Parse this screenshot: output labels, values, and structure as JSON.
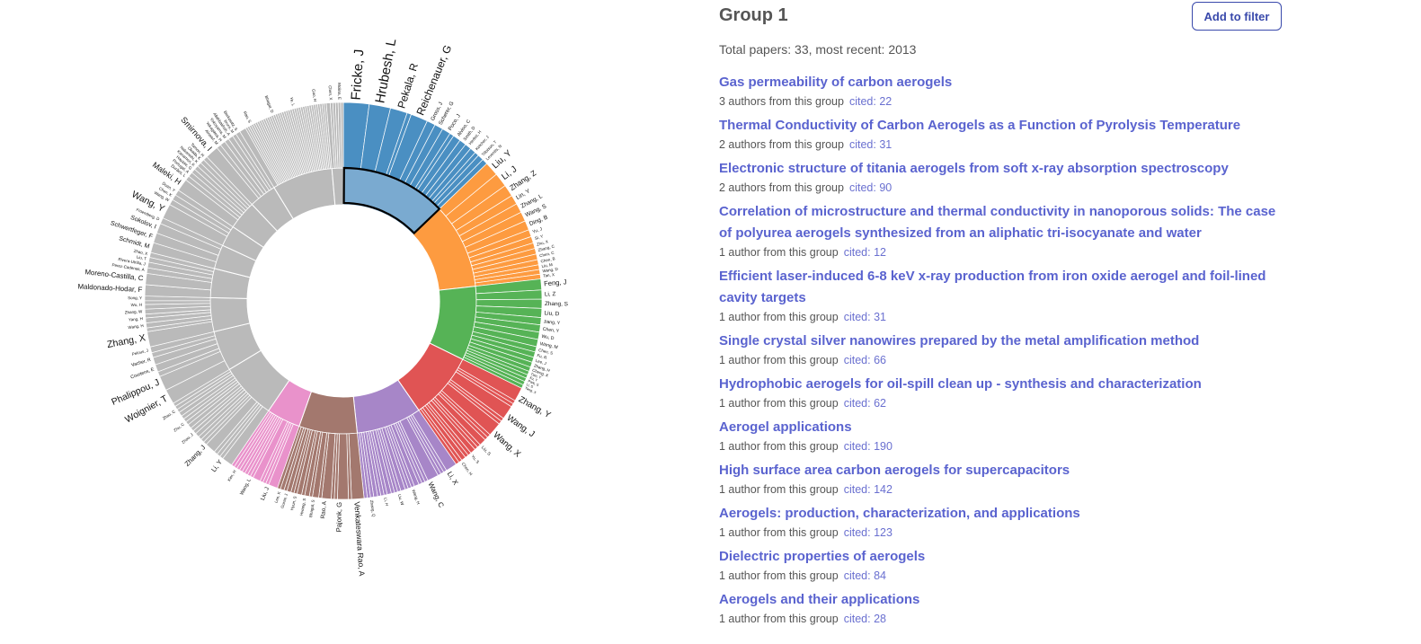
{
  "chart_data": {
    "type": "sunburst",
    "highlighted_group": "Group 1",
    "groups": [
      {
        "name": "Group 1",
        "share": 13.1,
        "color": "#4a8fc2",
        "highlight_color": "#7aaad0",
        "authors": [
          {
            "name": "Fricke, J",
            "weight": 6
          },
          {
            "name": "Hrubesh, L",
            "weight": 5
          },
          {
            "name": "Pekala, R",
            "weight": 4
          },
          {
            "name": "Reichenauer, G",
            "weight": 4
          },
          {
            "name": "Gross, J",
            "weight": 2
          },
          {
            "name": "Scherer, G",
            "weight": 2
          },
          {
            "name": "Poco, J",
            "weight": 2
          },
          {
            "name": "Alviso, C",
            "weight": 1.8
          },
          {
            "name": "Smith, D",
            "weight": 1.6
          },
          {
            "name": "Herbst, H",
            "weight": 1.5
          },
          {
            "name": "Ketcher, J",
            "weight": 1.4
          },
          {
            "name": "Tillotson, T",
            "weight": 1.4
          },
          {
            "name": "Leventis, N",
            "weight": 1.3
          }
        ],
        "unlabeled": 3
      },
      {
        "name": "",
        "share": 10.6,
        "color": "#fd9b40",
        "authors": [
          {
            "name": "Liu, Y",
            "weight": 3
          },
          {
            "name": "Li, J",
            "weight": 3
          },
          {
            "name": "Zhang, Z",
            "weight": 2.5
          },
          {
            "name": "Lin, Y",
            "weight": 2
          },
          {
            "name": "Zhang, L",
            "weight": 2
          },
          {
            "name": "Wang, S",
            "weight": 2
          },
          {
            "name": "Ding, B",
            "weight": 2
          },
          {
            "name": "Yu, J",
            "weight": 1.5
          },
          {
            "name": "Si, Y",
            "weight": 1.4
          },
          {
            "name": "Zhu, X",
            "weight": 1.2
          },
          {
            "name": "Zhang, C",
            "weight": 1.2
          },
          {
            "name": "Chen, C",
            "weight": 1.2
          },
          {
            "name": "Chen, B",
            "weight": 1.1
          },
          {
            "name": "Liu, M",
            "weight": 1
          },
          {
            "name": "Wang, D",
            "weight": 1
          },
          {
            "name": "Tan, X",
            "weight": 1
          }
        ],
        "unlabeled": 0
      },
      {
        "name": "",
        "share": 9.2,
        "color": "#56b356",
        "authors": [
          {
            "name": "Feng, J",
            "weight": 3
          },
          {
            "name": "Li, Z",
            "weight": 2.5
          },
          {
            "name": "Zhang, S",
            "weight": 2.5
          },
          {
            "name": "Liu, D",
            "weight": 2.5
          },
          {
            "name": "Jiang, Y",
            "weight": 2
          },
          {
            "name": "Chen, Y",
            "weight": 2
          },
          {
            "name": "Wu, D",
            "weight": 2
          },
          {
            "name": "Wang, M",
            "weight": 2
          },
          {
            "name": "Chen, S",
            "weight": 1.5
          },
          {
            "name": "Fu, R",
            "weight": 1.5
          },
          {
            "name": "Lee, J",
            "weight": 1.4
          },
          {
            "name": "Zhang, H",
            "weight": 1.4
          },
          {
            "name": "Cheng, X",
            "weight": 1.2
          },
          {
            "name": "Tian, Y",
            "weight": 1
          },
          {
            "name": "Xu, Y",
            "weight": 1
          },
          {
            "name": "Park, S",
            "weight": 1
          },
          {
            "name": "Li, S",
            "weight": 1
          },
          {
            "name": "Yang, X",
            "weight": 1
          }
        ],
        "unlabeled": 0
      },
      {
        "name": "",
        "share": 8.3,
        "color": "#e05454",
        "authors": [
          {
            "name": "Zhang, Y",
            "weight": 4
          },
          {
            "name": "Wang, J",
            "weight": 4
          },
          {
            "name": "Wang, X",
            "weight": 4
          },
          {
            "name": "Liu, S",
            "weight": 2
          },
          {
            "name": "Yu, S",
            "weight": 1.5
          },
          {
            "name": "Chen, H",
            "weight": 1.3
          }
        ],
        "unlabeled": 12
      },
      {
        "name": "",
        "share": 8.1,
        "color": "#a786c8",
        "authors": [
          {
            "name": "Li, X",
            "weight": 3.5
          },
          {
            "name": "Wang, C",
            "weight": 3.5
          },
          {
            "name": "Wang, H",
            "weight": 1.5
          },
          {
            "name": "Liu, W",
            "weight": 1.4
          },
          {
            "name": "Li, H",
            "weight": 1.3
          },
          {
            "name": "Zhang, Q",
            "weight": 1.2
          }
        ],
        "unlabeled": 18
      },
      {
        "name": "",
        "share": 7.2,
        "color": "#a3786e",
        "authors": [
          {
            "name": "Venkateswara Rao, A",
            "weight": 4
          },
          {
            "name": "Pajonk, G",
            "weight": 3.5
          },
          {
            "name": "Rao, A",
            "weight": 3
          },
          {
            "name": "Bhagat, S",
            "weight": 2
          },
          {
            "name": "Hwang, S",
            "weight": 1.5
          },
          {
            "name": "Hyun, S",
            "weight": 1.5
          },
          {
            "name": "Gurav, J",
            "weight": 1.3
          },
          {
            "name": "Lee, K",
            "weight": 1.2
          }
        ],
        "unlabeled": 10
      },
      {
        "name": "",
        "share": 4.2,
        "color": "#e992cb",
        "authors": [
          {
            "name": "Liu, J",
            "weight": 3
          },
          {
            "name": "Wang, L",
            "weight": 2.5
          },
          {
            "name": "Kim, H",
            "weight": 1
          }
        ],
        "unlabeled": 10
      },
      {
        "name": "",
        "share": 7.0,
        "color": "#bababa",
        "authors": [
          {
            "name": "Li, Y",
            "weight": 3
          },
          {
            "name": "Zhang, J",
            "weight": 3
          },
          {
            "name": "Zhou, J",
            "weight": 1.2
          },
          {
            "name": "Zhu, C",
            "weight": 1.2
          },
          {
            "name": "Zhao, C",
            "weight": 1.2
          }
        ],
        "unlabeled": 14
      },
      {
        "name": "",
        "share": 5.0,
        "color": "#bababa",
        "authors": [
          {
            "name": "Woignier, T",
            "weight": 3
          },
          {
            "name": "Phalippou, J",
            "weight": 3
          },
          {
            "name": "Courtens, E",
            "weight": 1.5
          },
          {
            "name": "Vacher, R",
            "weight": 1.5
          },
          {
            "name": "Pelous, J",
            "weight": 1.2
          }
        ],
        "unlabeled": 2
      },
      {
        "name": "",
        "share": 4.2,
        "color": "#bababa",
        "authors": [
          {
            "name": "Zhang, X",
            "weight": 4
          },
          {
            "name": "Wang, H",
            "weight": 1.3
          },
          {
            "name": "Yang, H",
            "weight": 1.3
          },
          {
            "name": "Zhang, W",
            "weight": 1.3
          },
          {
            "name": "Wu, H",
            "weight": 1.2
          },
          {
            "name": "Song, Y",
            "weight": 1.2
          }
        ],
        "unlabeled": 3
      },
      {
        "name": "",
        "share": 3.6,
        "color": "#bababa",
        "authors": [
          {
            "name": "Maldonado-Hodar, F",
            "weight": 3
          },
          {
            "name": "Moreno-Castilla, C",
            "weight": 3
          },
          {
            "name": "Perez-Cadenas, A",
            "weight": 1.5
          },
          {
            "name": "Rivera-Utrilla, J",
            "weight": 1.5
          },
          {
            "name": "Liu, T",
            "weight": 1.3
          },
          {
            "name": "Zhao, X",
            "weight": 1.3
          }
        ],
        "unlabeled": 0
      },
      {
        "name": "",
        "share": 3.0,
        "color": "#bababa",
        "authors": [
          {
            "name": "Schmidt, M",
            "weight": 2.5
          },
          {
            "name": "Schwertfeger, F",
            "weight": 2.5
          },
          {
            "name": "Sokolov, I",
            "weight": 2.5
          },
          {
            "name": "Froemberg, D",
            "weight": 1.5
          }
        ],
        "unlabeled": 0
      },
      {
        "name": "",
        "share": 2.6,
        "color": "#bababa",
        "authors": [
          {
            "name": "Wang, Y",
            "weight": 3.5
          },
          {
            "name": "Wang, W",
            "weight": 1.3
          },
          {
            "name": "Chen, K",
            "weight": 1.3
          },
          {
            "name": "Duan, Y",
            "weight": 1.3
          }
        ],
        "unlabeled": 0
      },
      {
        "name": "",
        "share": 3.6,
        "color": "#bababa",
        "authors": [
          {
            "name": "Maleki, H",
            "weight": 3.5
          },
          {
            "name": "Durães, L",
            "weight": 1.3
          },
          {
            "name": "Portugal, A",
            "weight": 1.3
          },
          {
            "name": "Hayase, G",
            "weight": 1.2
          },
          {
            "name": "Kanamori, K",
            "weight": 1.2
          },
          {
            "name": "Nakanishi, K",
            "weight": 1.2
          },
          {
            "name": "Okada, K",
            "weight": 1.2
          },
          {
            "name": "Tamon, H",
            "weight": 1.2
          }
        ],
        "unlabeled": 0
      },
      {
        "name": "",
        "share": 3.4,
        "color": "#bababa",
        "authors": [
          {
            "name": "Smirnova, I",
            "weight": 3.5
          },
          {
            "name": "Alnaief, M",
            "weight": 1.2
          },
          {
            "name": "Yokogawa, H",
            "weight": 1.4
          },
          {
            "name": "Yokoyama, M",
            "weight": 1.2
          },
          {
            "name": "Allahbakhsh, A",
            "weight": 1.3
          },
          {
            "name": "Bruns, M",
            "weight": 1
          },
          {
            "name": "Berkowitz, S",
            "weight": 1.2
          }
        ],
        "unlabeled": 0
      },
      {
        "name": "",
        "share": 7.5,
        "color": "#bababa",
        "authors": [
          {
            "name": "Rao, S",
            "weight": 3
          },
          {
            "name": "Bhagat, D",
            "weight": 1
          },
          {
            "name": "Ye, L",
            "weight": 1
          },
          {
            "name": "Gao, H",
            "weight": 1
          }
        ],
        "unlabeled": 36
      },
      {
        "name": "",
        "share": 1.4,
        "color": "#bababa",
        "authors": [
          {
            "name": "Chen, X",
            "weight": 1.5
          },
          {
            "name": "Molina, E",
            "weight": 1
          }
        ],
        "unlabeled": 4
      }
    ]
  },
  "panel": {
    "group_title": "Group 1",
    "add_filter_label": "Add to filter",
    "summary": "Total papers: 33, most recent: 2013",
    "papers": [
      {
        "title": "Gas permeability of carbon aerogels",
        "authors": "3 authors from this group",
        "cited": "cited: 22"
      },
      {
        "title": "Thermal Conductivity of Carbon Aerogels as a Function of Pyrolysis Temperature",
        "authors": "2 authors from this group",
        "cited": "cited: 31"
      },
      {
        "title": "Electronic structure of titania aerogels from soft x-ray absorption spectroscopy",
        "authors": "2 authors from this group",
        "cited": "cited: 90"
      },
      {
        "title": "Correlation of microstructure and thermal conductivity in nanoporous solids: The case of polyurea aerogels synthesized from an aliphatic tri-isocyanate and water",
        "authors": "1 author from this group",
        "cited": "cited: 12"
      },
      {
        "title": "Efficient laser-induced 6-8 keV x-ray production from iron oxide aerogel and foil-lined cavity targets",
        "authors": "1 author from this group",
        "cited": "cited: 31"
      },
      {
        "title": "Single crystal silver nanowires prepared by the metal amplification method",
        "authors": "1 author from this group",
        "cited": "cited: 66"
      },
      {
        "title": "Hydrophobic aerogels for oil-spill clean up - synthesis and characterization",
        "authors": "1 author from this group",
        "cited": "cited: 62"
      },
      {
        "title": "Aerogel applications",
        "authors": "1 author from this group",
        "cited": "cited: 190"
      },
      {
        "title": "High surface area carbon aerogels for supercapacitors",
        "authors": "1 author from this group",
        "cited": "cited: 142"
      },
      {
        "title": "Aerogels: production, characterization, and applications",
        "authors": "1 author from this group",
        "cited": "cited: 123"
      },
      {
        "title": "Dielectric properties of aerogels",
        "authors": "1 author from this group",
        "cited": "cited: 84"
      },
      {
        "title": "Aerogels and their applications",
        "authors": "1 author from this group",
        "cited": "cited: 28"
      }
    ]
  }
}
